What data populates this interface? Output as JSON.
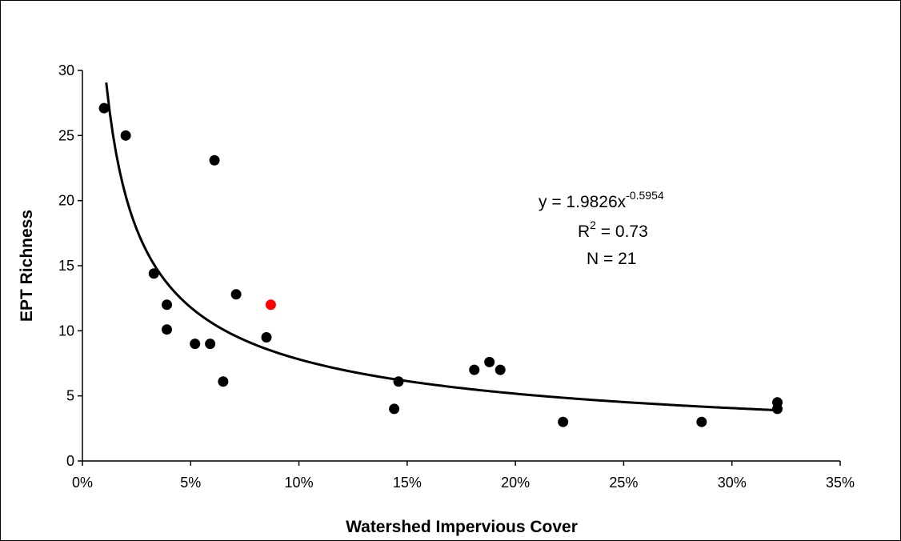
{
  "chart_data": {
    "type": "scatter",
    "title": "",
    "xlabel": "Watershed Impervious Cover",
    "ylabel": "EPT Richness",
    "xlim": [
      0,
      35
    ],
    "ylim": [
      0,
      30
    ],
    "x_ticks": [
      0,
      5,
      10,
      15,
      20,
      25,
      30,
      35
    ],
    "x_tick_labels": [
      "0%",
      "5%",
      "10%",
      "15%",
      "20%",
      "25%",
      "30%",
      "35%"
    ],
    "y_ticks": [
      0,
      5,
      10,
      15,
      20,
      25,
      30
    ],
    "y_tick_labels": [
      "0",
      "5",
      "10",
      "15",
      "20",
      "25",
      "30"
    ],
    "grid": false,
    "legend": false,
    "series": [
      {
        "color": "#000000",
        "points": [
          {
            "x": 1.0,
            "y": 27.1
          },
          {
            "x": 2.0,
            "y": 25.0
          },
          {
            "x": 3.3,
            "y": 14.4
          },
          {
            "x": 3.9,
            "y": 12.0
          },
          {
            "x": 3.9,
            "y": 10.1
          },
          {
            "x": 5.2,
            "y": 9.0
          },
          {
            "x": 5.9,
            "y": 9.0
          },
          {
            "x": 6.1,
            "y": 23.1
          },
          {
            "x": 6.5,
            "y": 6.1
          },
          {
            "x": 7.1,
            "y": 12.8
          },
          {
            "x": 8.5,
            "y": 9.5
          },
          {
            "x": 14.4,
            "y": 4.0
          },
          {
            "x": 14.6,
            "y": 6.1
          },
          {
            "x": 18.1,
            "y": 7.0
          },
          {
            "x": 18.8,
            "y": 7.6
          },
          {
            "x": 19.3,
            "y": 7.0
          },
          {
            "x": 22.2,
            "y": 3.0
          },
          {
            "x": 28.6,
            "y": 3.0
          },
          {
            "x": 32.1,
            "y": 4.5
          },
          {
            "x": 32.1,
            "y": 4.0
          }
        ]
      },
      {
        "color": "#ff0000",
        "points": [
          {
            "x": 8.7,
            "y": 12.0
          }
        ]
      }
    ],
    "trendline": {
      "type": "power",
      "a": 1.9826,
      "b": -0.5954,
      "x_scale": 0.01,
      "x_range": [
        1.1,
        32.1
      ],
      "color": "#000000"
    },
    "annotations": {
      "equation_prefix": "y = 1.9826x",
      "equation_exponent": "-0.5954",
      "r2_prefix": "R",
      "r2_exponent": "2",
      "r2_value": " = 0.73",
      "n_text": "N = 21"
    }
  }
}
